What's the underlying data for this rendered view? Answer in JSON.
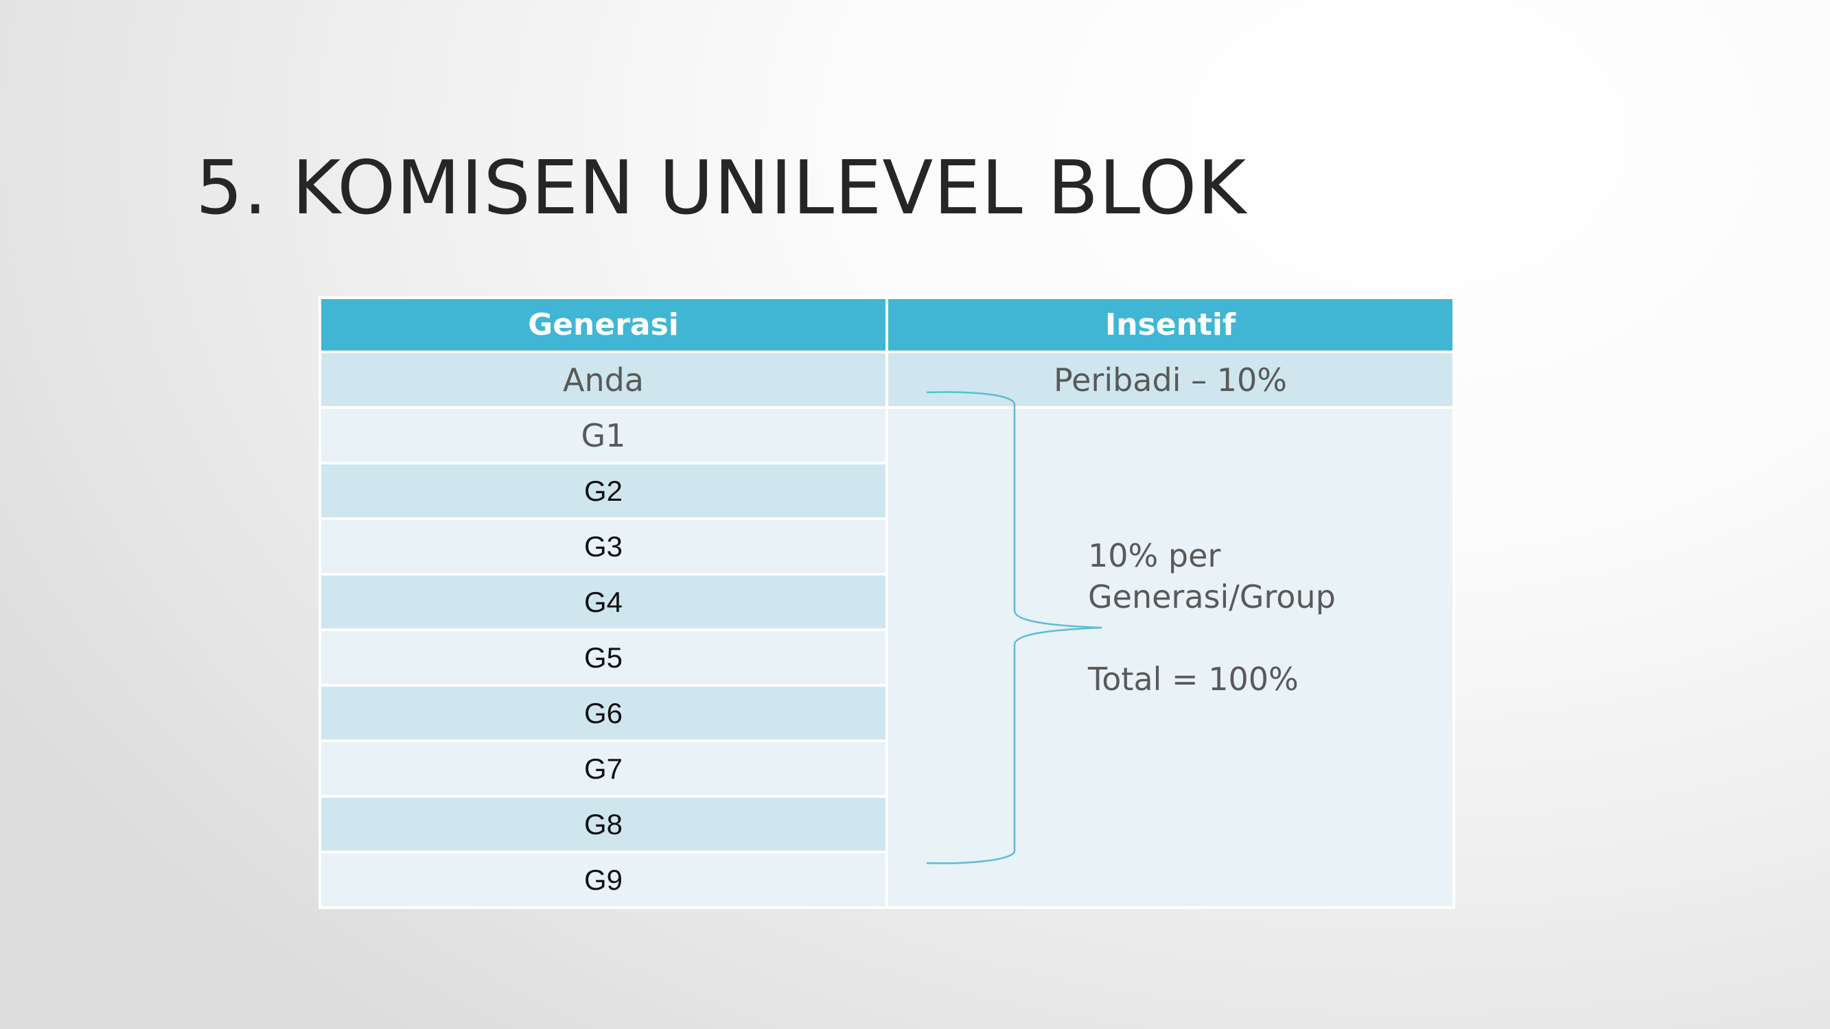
{
  "slide": {
    "title": "5. KOMISEN UNILEVEL BLOK"
  },
  "table": {
    "headers": [
      "Generasi",
      "Insentif"
    ],
    "first_row": {
      "generasi": "Anda",
      "insentif": "Peribadi – 10%"
    },
    "generations": [
      "G1",
      "G2",
      "G3",
      "G4",
      "G5",
      "G6",
      "G7",
      "G8",
      "G9"
    ]
  },
  "note": {
    "line1": "10% per",
    "line2": "Generasi/Group",
    "total": "Total = 100%"
  },
  "colors": {
    "header_bg": "#41b6d4",
    "band_row": "#cfe6ee",
    "light_row": "#e8f2f7",
    "brace": "#5bbdd3"
  }
}
